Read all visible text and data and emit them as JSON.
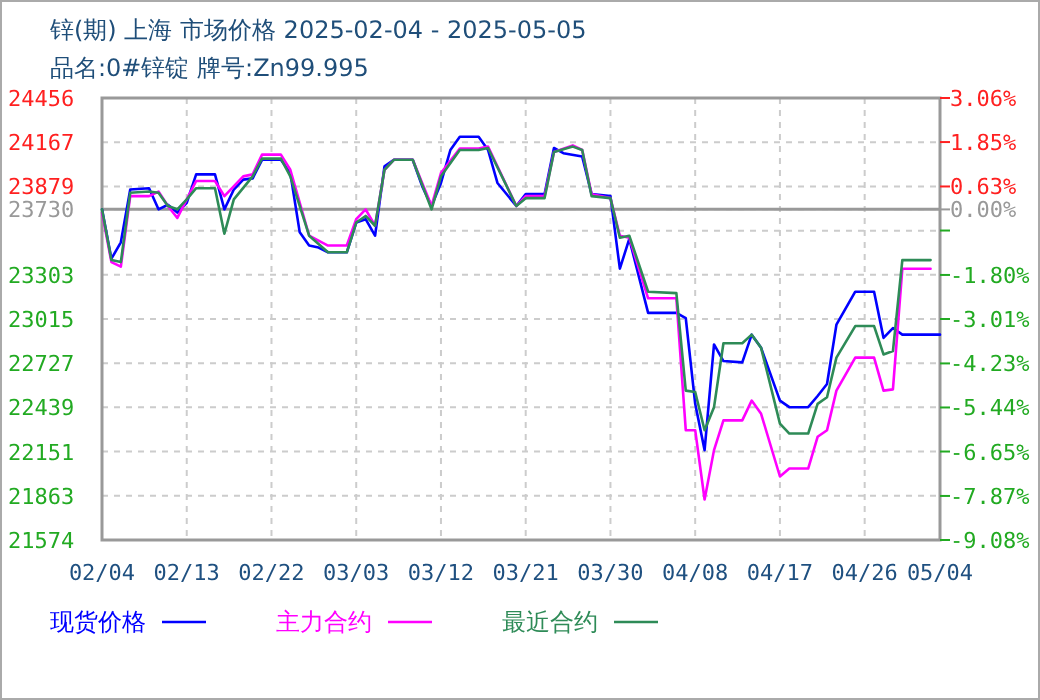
{
  "chart_data": {
    "type": "line",
    "title": "锌(期) 上海 市场价格 2025-02-04 - 2025-05-05",
    "subtitle": "品名:0#锌锭 牌号:Zn99.995",
    "xlim": [
      "2025-02-04",
      "2025-05-04"
    ],
    "xticks": [
      {
        "value": "2025-02-04",
        "label": "02/04"
      },
      {
        "value": "2025-02-13",
        "label": "02/13"
      },
      {
        "value": "2025-02-22",
        "label": "02/22"
      },
      {
        "value": "2025-03-03",
        "label": "03/03"
      },
      {
        "value": "2025-03-12",
        "label": "03/12"
      },
      {
        "value": "2025-03-21",
        "label": "03/21"
      },
      {
        "value": "2025-03-30",
        "label": "03/30"
      },
      {
        "value": "2025-04-08",
        "label": "04/08"
      },
      {
        "value": "2025-04-17",
        "label": "04/17"
      },
      {
        "value": "2025-04-26",
        "label": "04/26"
      },
      {
        "value": "2025-05-04",
        "label": "05/04"
      }
    ],
    "ylim": [
      21574,
      24456
    ],
    "yticks": [
      24456,
      24167,
      23879,
      {
        "value": 23591,
        "label": null
      },
      23730,
      23303,
      23015,
      22727,
      22439,
      22151,
      21863,
      21574
    ],
    "y2lim": [
      -9.08,
      3.06
    ],
    "y2ticks": [
      {
        "value": 3.06,
        "label": "3.06%"
      },
      {
        "value": 1.85,
        "label": "1.85%"
      },
      {
        "value": 0.63,
        "label": "0.63%"
      },
      {
        "value": 0,
        "label": "0.00%"
      },
      {
        "value": -0.58,
        "label": null
      },
      {
        "value": -1.8,
        "label": "-1.80%"
      },
      {
        "value": -3.01,
        "label": "-3.01%"
      },
      {
        "value": -4.23,
        "label": "-4.23%"
      },
      {
        "value": -5.44,
        "label": "-5.44%"
      },
      {
        "value": -6.65,
        "label": "-6.65%"
      },
      {
        "value": -7.87,
        "label": "-7.87%"
      },
      {
        "value": -9.08,
        "label": "-9.08%"
      }
    ],
    "ref_lines": [
      {
        "axis": "y",
        "value": 23730,
        "color": "#999999",
        "line_style": "solid"
      }
    ],
    "grid": true,
    "legend": "bottom",
    "marker": "none",
    "line_style": "solid",
    "series": [
      {
        "name": "现货价格",
        "color": "#0000ff",
        "x": [
          "2025-02-04",
          "2025-02-05",
          "2025-02-06",
          "2025-02-07",
          "2025-02-09",
          "2025-02-10",
          "2025-02-11",
          "2025-02-12",
          "2025-02-13",
          "2025-02-14",
          "2025-02-16",
          "2025-02-17",
          "2025-02-18",
          "2025-02-19",
          "2025-02-20",
          "2025-02-21",
          "2025-02-23",
          "2025-02-24",
          "2025-02-25",
          "2025-02-26",
          "2025-02-27",
          "2025-02-28",
          "2025-03-02",
          "2025-03-03",
          "2025-03-04",
          "2025-03-05",
          "2025-03-06",
          "2025-03-07",
          "2025-03-09",
          "2025-03-10",
          "2025-03-11",
          "2025-03-12",
          "2025-03-13",
          "2025-03-14",
          "2025-03-16",
          "2025-03-17",
          "2025-03-18",
          "2025-03-20",
          "2025-03-21",
          "2025-03-23",
          "2025-03-24",
          "2025-03-25",
          "2025-03-27",
          "2025-03-28",
          "2025-03-30",
          "2025-03-31",
          "2025-04-01",
          "2025-04-03",
          "2025-04-06",
          "2025-04-07",
          "2025-04-08",
          "2025-04-09",
          "2025-04-10",
          "2025-04-11",
          "2025-04-13",
          "2025-04-14",
          "2025-04-15",
          "2025-04-17",
          "2025-04-18",
          "2025-04-20",
          "2025-04-21",
          "2025-04-22",
          "2025-04-23",
          "2025-04-25",
          "2025-04-27",
          "2025-04-28",
          "2025-04-29",
          "2025-04-30",
          "2025-05-04"
        ],
        "values": [
          23730,
          23408,
          23515,
          23859,
          23868,
          23730,
          23760,
          23709,
          23773,
          23958,
          23958,
          23730,
          23859,
          23924,
          23932,
          24053,
          24053,
          23967,
          23580,
          23494,
          23481,
          23450,
          23450,
          23644,
          23666,
          23558,
          24010,
          24053,
          24053,
          23881,
          23752,
          23902,
          24117,
          24203,
          24203,
          24117,
          23902,
          23752,
          23829,
          23829,
          24130,
          24096,
          24074,
          23829,
          23816,
          23343,
          23537,
          23055,
          23055,
          23020,
          22462,
          22160,
          22849,
          22741,
          22732,
          22913,
          22827,
          22483,
          22440,
          22440,
          22513,
          22591,
          22978,
          23193,
          23193,
          22892,
          22956,
          22913,
          22913
        ]
      },
      {
        "name": "主力合约",
        "color": "#ff00ff",
        "x": [
          "2025-02-04",
          "2025-02-05",
          "2025-02-06",
          "2025-02-07",
          "2025-02-09",
          "2025-02-10",
          "2025-02-11",
          "2025-02-12",
          "2025-02-13",
          "2025-02-14",
          "2025-02-16",
          "2025-02-17",
          "2025-02-19",
          "2025-02-20",
          "2025-02-21",
          "2025-02-23",
          "2025-02-24",
          "2025-02-26",
          "2025-02-28",
          "2025-03-02",
          "2025-03-03",
          "2025-03-04",
          "2025-03-05",
          "2025-03-06",
          "2025-03-07",
          "2025-03-09",
          "2025-03-11",
          "2025-03-12",
          "2025-03-14",
          "2025-03-16",
          "2025-03-17",
          "2025-03-20",
          "2025-03-21",
          "2025-03-23",
          "2025-03-24",
          "2025-03-26",
          "2025-03-27",
          "2025-03-28",
          "2025-03-30",
          "2025-03-31",
          "2025-04-01",
          "2025-04-03",
          "2025-04-06",
          "2025-04-07",
          "2025-04-08",
          "2025-04-09",
          "2025-04-10",
          "2025-04-11",
          "2025-04-13",
          "2025-04-14",
          "2025-04-15",
          "2025-04-17",
          "2025-04-18",
          "2025-04-20",
          "2025-04-21",
          "2025-04-22",
          "2025-04-23",
          "2025-04-25",
          "2025-04-27",
          "2025-04-28",
          "2025-04-29",
          "2025-04-30",
          "2025-05-03"
        ],
        "values": [
          23709,
          23386,
          23356,
          23816,
          23816,
          23846,
          23752,
          23674,
          23795,
          23915,
          23915,
          23816,
          23945,
          23958,
          24087,
          24087,
          23988,
          23558,
          23494,
          23494,
          23666,
          23730,
          23623,
          23988,
          24053,
          24053,
          23752,
          23967,
          24126,
          24126,
          24139,
          23752,
          23816,
          23816,
          24104,
          24147,
          24117,
          23829,
          23803,
          23558,
          23545,
          23150,
          23150,
          22290,
          22290,
          21838,
          22160,
          22354,
          22354,
          22483,
          22397,
          21988,
          22040,
          22040,
          22247,
          22290,
          22548,
          22763,
          22763,
          22548,
          22556,
          23343,
          23343
        ]
      },
      {
        "name": "最近合约",
        "color": "#2e8b57",
        "x": [
          "2025-02-04",
          "2025-02-05",
          "2025-02-06",
          "2025-02-07",
          "2025-02-09",
          "2025-02-10",
          "2025-02-11",
          "2025-02-12",
          "2025-02-13",
          "2025-02-14",
          "2025-02-16",
          "2025-02-17",
          "2025-02-18",
          "2025-02-20",
          "2025-02-21",
          "2025-02-23",
          "2025-02-24",
          "2025-02-26",
          "2025-02-28",
          "2025-03-02",
          "2025-03-03",
          "2025-03-04",
          "2025-03-05",
          "2025-03-06",
          "2025-03-07",
          "2025-03-09",
          "2025-03-11",
          "2025-03-12",
          "2025-03-14",
          "2025-03-16",
          "2025-03-17",
          "2025-03-20",
          "2025-03-21",
          "2025-03-23",
          "2025-03-24",
          "2025-03-26",
          "2025-03-27",
          "2025-03-28",
          "2025-03-30",
          "2025-03-31",
          "2025-04-01",
          "2025-04-03",
          "2025-04-06",
          "2025-04-07",
          "2025-04-08",
          "2025-04-09",
          "2025-04-10",
          "2025-04-11",
          "2025-04-13",
          "2025-04-14",
          "2025-04-15",
          "2025-04-17",
          "2025-04-18",
          "2025-04-20",
          "2025-04-21",
          "2025-04-22",
          "2025-04-23",
          "2025-04-25",
          "2025-04-27",
          "2025-04-28",
          "2025-04-29",
          "2025-04-30",
          "2025-05-03"
        ],
        "values": [
          23730,
          23399,
          23386,
          23838,
          23846,
          23838,
          23752,
          23730,
          23795,
          23868,
          23868,
          23571,
          23795,
          23945,
          24061,
          24061,
          23945,
          23558,
          23450,
          23450,
          23644,
          23687,
          23623,
          23988,
          24053,
          24053,
          23730,
          23945,
          24117,
          24117,
          24130,
          23752,
          23803,
          23803,
          24104,
          24139,
          24117,
          23816,
          23803,
          23545,
          23558,
          23193,
          23184,
          22548,
          22539,
          22290,
          22440,
          22857,
          22857,
          22913,
          22827,
          22333,
          22268,
          22268,
          22462,
          22505,
          22763,
          22969,
          22969,
          22784,
          22806,
          23399,
          23399
        ]
      }
    ]
  }
}
